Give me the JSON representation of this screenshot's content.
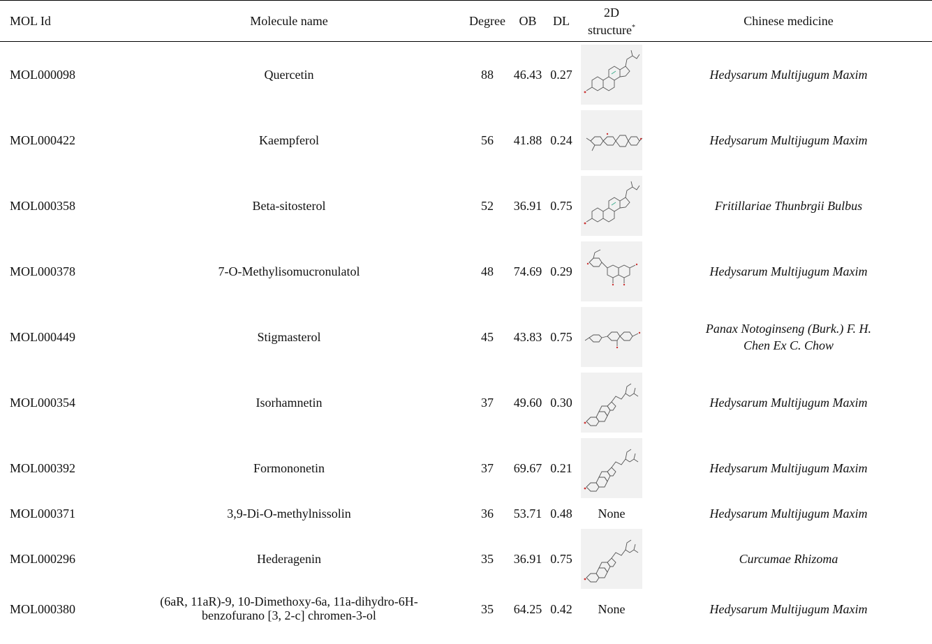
{
  "headers": {
    "mol_id": "MOL Id",
    "molecule_name": "Molecule name",
    "degree": "Degree",
    "ob": "OB",
    "dl": "DL",
    "structure_line1": "2D",
    "structure_line2": "structure",
    "structure_mark": "*",
    "medicine": "Chinese medicine"
  },
  "rows": [
    {
      "id": "MOL000098",
      "name": "Quercetin",
      "degree": "88",
      "ob": "46.43",
      "dl": "0.27",
      "structure": "steroid-skeleton",
      "medicine": "Hedysarum Multijugum Maxim"
    },
    {
      "id": "MOL000422",
      "name": "Kaempferol",
      "degree": "56",
      "ob": "41.88",
      "dl": "0.24",
      "structure": "pterocarpan-skeleton",
      "medicine": "Hedysarum Multijugum Maxim"
    },
    {
      "id": "MOL000358",
      "name": "Beta-sitosterol",
      "degree": "52",
      "ob": "36.91",
      "dl": "0.75",
      "structure": "steroid-skeleton",
      "medicine": "Fritillariae Thunbrgii Bulbus"
    },
    {
      "id": "MOL000378",
      "name": "7-O-Methylisomucronulatol",
      "degree": "48",
      "ob": "74.69",
      "dl": "0.29",
      "structure": "flavonol-skeleton",
      "medicine": "Hedysarum Multijugum Maxim"
    },
    {
      "id": "MOL000449",
      "name": "Stigmasterol",
      "degree": "45",
      "ob": "43.83",
      "dl": "0.75",
      "structure": "isoflavone-skeleton",
      "medicine_line1": "Panax Notoginseng (Burk.) F. H.",
      "medicine_line2": "Chen Ex C. Chow"
    },
    {
      "id": "MOL000354",
      "name": "Isorhamnetin",
      "degree": "37",
      "ob": "49.60",
      "dl": "0.30",
      "structure": "sterol-skeleton",
      "medicine": "Hedysarum Multijugum Maxim"
    },
    {
      "id": "MOL000392",
      "name": "Formononetin",
      "degree": "37",
      "ob": "69.67",
      "dl": "0.21",
      "structure": "sterol-skeleton",
      "medicine": "Hedysarum Multijugum Maxim"
    },
    {
      "id": "MOL000371",
      "name": "3,9-Di-O-methylnissolin",
      "degree": "36",
      "ob": "53.71",
      "dl": "0.48",
      "structure_text": "None",
      "medicine": "Hedysarum Multijugum Maxim"
    },
    {
      "id": "MOL000296",
      "name": "Hederagenin",
      "degree": "35",
      "ob": "36.91",
      "dl": "0.75",
      "structure": "sterol-skeleton",
      "medicine": "Curcumae Rhizoma"
    },
    {
      "id": "MOL000380",
      "name_line1": "(6aR, 11aR)-9, 10-Dimethoxy-6a, 11a-dihydro-6H-",
      "name_line2": "benzofurano [3, 2-c] chromen-3-ol",
      "degree": "35",
      "ob": "64.25",
      "dl": "0.42",
      "structure_text": "None",
      "medicine": "Hedysarum Multijugum Maxim"
    }
  ]
}
